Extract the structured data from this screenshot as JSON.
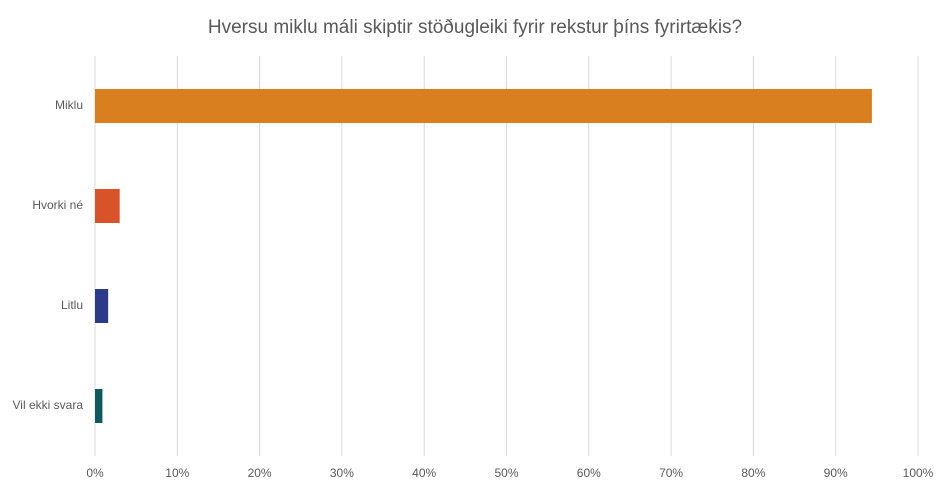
{
  "chart_data": {
    "type": "hbar",
    "title": "Hversu miklu máli skiptir stöðugleiki fyrir rekstur þíns fyrirtækis?",
    "categories": [
      "Miklu",
      "Hvorki né",
      "Litlu",
      "Vil ekki svara"
    ],
    "values": [
      94.4,
      3.0,
      1.6,
      0.9
    ],
    "colors": [
      "#d97f1f",
      "#d9532a",
      "#2b3a8a",
      "#0f5a5e"
    ],
    "xlim": [
      0,
      100
    ],
    "xticks": [
      {
        "value": 0,
        "label": "0%"
      },
      {
        "value": 10,
        "label": "10%"
      },
      {
        "value": 20,
        "label": "20%"
      },
      {
        "value": 30,
        "label": "30%"
      },
      {
        "value": 40,
        "label": "40%"
      },
      {
        "value": 50,
        "label": "50%"
      },
      {
        "value": 60,
        "label": "60%"
      },
      {
        "value": 70,
        "label": "70%"
      },
      {
        "value": 80,
        "label": "80%"
      },
      {
        "value": 90,
        "label": "90%"
      },
      {
        "value": 100,
        "label": "100%"
      }
    ],
    "grid": true
  }
}
